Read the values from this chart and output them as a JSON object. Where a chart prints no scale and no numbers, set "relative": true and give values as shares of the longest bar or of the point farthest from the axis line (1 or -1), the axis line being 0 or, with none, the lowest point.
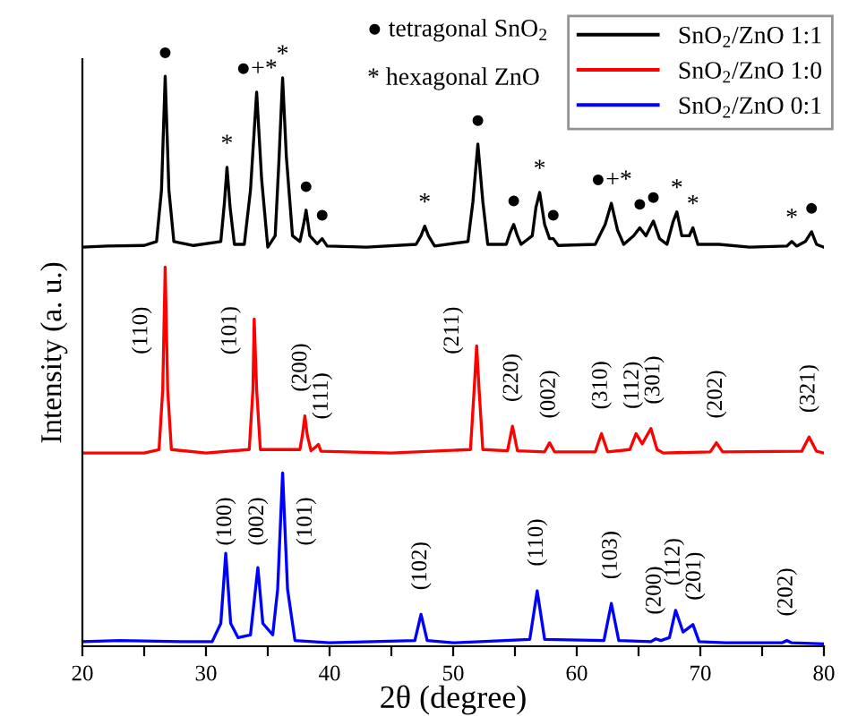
{
  "chart_data": {
    "type": "line",
    "relative": true,
    "xlabel": "2θ (degree)",
    "ylabel": "Intensity (a. u.)",
    "xlim": [
      20,
      80
    ],
    "xticks": [
      20,
      {
        "value": 25,
        "label": null
      },
      30,
      {
        "value": 35,
        "label": null
      },
      40,
      {
        "value": 45,
        "label": null
      },
      50,
      {
        "value": 55,
        "label": null
      },
      60,
      {
        "value": 65,
        "label": null
      },
      70,
      {
        "value": 75,
        "label": null
      },
      80
    ],
    "grid": false,
    "legend": "top right",
    "marker": "none",
    "line_style": "solid",
    "series": [
      {
        "name": "SnO$_{2}$/ZnO 1:1",
        "color": "#000000",
        "x": [
          20,
          22,
          25,
          26.0,
          26.4,
          26.7,
          27.0,
          27.4,
          29,
          31.2,
          31.5,
          31.7,
          31.95,
          32.3,
          33.1,
          33.6,
          34.1,
          34.5,
          35.0,
          35.6,
          35.9,
          36.2,
          36.5,
          37.0,
          37.6,
          37.9,
          38.1,
          38.4,
          39.0,
          39.4,
          39.8,
          43,
          47.0,
          47.4,
          47.7,
          48.0,
          48.5,
          51.2,
          51.6,
          52.0,
          52.4,
          52.8,
          54.3,
          54.6,
          54.9,
          55.2,
          55.5,
          56.4,
          56.7,
          57.0,
          57.4,
          57.8,
          58.1,
          58.5,
          61.5,
          62.3,
          62.8,
          63.3,
          63.8,
          64.6,
          65.1,
          65.6,
          66.2,
          66.7,
          67.3,
          67.8,
          68.1,
          68.5,
          69.1,
          69.4,
          69.8,
          71.5,
          74,
          77.0,
          77.4,
          77.8,
          78.5,
          79.0,
          79.4,
          80
        ],
        "values": [
          0.7,
          0.702,
          0.703,
          0.71,
          0.8,
          1.0,
          0.8,
          0.71,
          0.703,
          0.71,
          0.78,
          0.84,
          0.77,
          0.705,
          0.705,
          0.8,
          0.972,
          0.82,
          0.7,
          0.72,
          0.85,
          0.997,
          0.86,
          0.72,
          0.71,
          0.74,
          0.765,
          0.72,
          0.706,
          0.715,
          0.702,
          0.7,
          0.705,
          0.72,
          0.737,
          0.72,
          0.702,
          0.71,
          0.78,
          0.881,
          0.78,
          0.705,
          0.705,
          0.725,
          0.74,
          0.72,
          0.705,
          0.72,
          0.77,
          0.796,
          0.74,
          0.715,
          0.715,
          0.703,
          0.705,
          0.74,
          0.777,
          0.73,
          0.705,
          0.72,
          0.734,
          0.72,
          0.746,
          0.715,
          0.705,
          0.745,
          0.762,
          0.72,
          0.72,
          0.734,
          0.705,
          0.705,
          0.7,
          0.702,
          0.71,
          0.702,
          0.71,
          0.727,
          0.705,
          0.7
        ]
      },
      {
        "name": "SnO$_{2}$/ZnO 1:0",
        "color": "#ff0000",
        "x": [
          20,
          25,
          26.2,
          26.5,
          26.7,
          26.9,
          27.2,
          30,
          33.5,
          33.8,
          33.9,
          34.1,
          34.4,
          37.6,
          37.8,
          38.0,
          38.2,
          38.5,
          38.9,
          39.1,
          39.3,
          45,
          51.4,
          51.7,
          51.9,
          52.1,
          52.4,
          54.4,
          54.8,
          55.2,
          57.4,
          57.8,
          58.2,
          61.5,
          62.0,
          62.5,
          64.3,
          64.8,
          65.3,
          66.0,
          66.5,
          67,
          70.8,
          71.3,
          71.8,
          78.2,
          78.8,
          79.4,
          80
        ],
        "values": [
          0.339,
          0.339,
          0.345,
          0.45,
          0.665,
          0.45,
          0.345,
          0.339,
          0.345,
          0.45,
          0.574,
          0.45,
          0.345,
          0.345,
          0.37,
          0.404,
          0.37,
          0.343,
          0.35,
          0.354,
          0.342,
          0.339,
          0.345,
          0.45,
          0.527,
          0.45,
          0.345,
          0.343,
          0.386,
          0.343,
          0.341,
          0.357,
          0.341,
          0.341,
          0.373,
          0.341,
          0.345,
          0.373,
          0.355,
          0.382,
          0.345,
          0.339,
          0.341,
          0.357,
          0.341,
          0.342,
          0.367,
          0.342,
          0.339
        ]
      },
      {
        "name": "SnO$_{2}$/ZnO 0:1",
        "color": "#0000ff",
        "x": [
          20,
          23,
          28,
          30.5,
          31.2,
          31.6,
          32.0,
          32.6,
          33.6,
          34.2,
          34.6,
          35.4,
          35.8,
          36.2,
          36.6,
          37.2,
          40,
          46.9,
          47.4,
          47.9,
          50,
          56.2,
          56.8,
          57.4,
          62.2,
          62.8,
          63.4,
          66.0,
          66.4,
          66.8,
          67.5,
          68.0,
          68.6,
          69.4,
          69.9,
          72,
          76.6,
          77.0,
          77.4,
          80
        ],
        "values": [
          0.008,
          0.01,
          0.008,
          0.008,
          0.04,
          0.163,
          0.04,
          0.015,
          0.02,
          0.138,
          0.04,
          0.02,
          0.1,
          0.304,
          0.1,
          0.01,
          0.006,
          0.01,
          0.056,
          0.01,
          0.006,
          0.012,
          0.097,
          0.012,
          0.01,
          0.075,
          0.01,
          0.008,
          0.013,
          0.01,
          0.015,
          0.063,
          0.025,
          0.038,
          0.008,
          0.006,
          0.006,
          0.01,
          0.006,
          0.004
        ]
      }
    ],
    "annotations": [
      "● tetragonal SnO$_{2}$",
      "* hexagonal ZnO",
      {
        "text": "●",
        "x": 26.7,
        "y": 1.0
      },
      {
        "text": "*",
        "x": 31.7,
        "y": 0.84
      },
      {
        "text": "●+*",
        "x": 34.1,
        "y": 0.972
      },
      {
        "text": "*",
        "x": 36.2,
        "y": 0.997
      },
      {
        "text": "●",
        "x": 38.1,
        "y": 0.765
      },
      {
        "text": "●",
        "x": 39.4,
        "y": 0.715
      },
      {
        "text": "*",
        "x": 47.7,
        "y": 0.737
      },
      {
        "text": "●",
        "x": 52.0,
        "y": 0.881
      },
      {
        "text": "●",
        "x": 54.9,
        "y": 0.74
      },
      {
        "text": "*",
        "x": 57.0,
        "y": 0.796
      },
      {
        "text": "●",
        "x": 58.1,
        "y": 0.715
      },
      {
        "text": "●+*",
        "x": 62.8,
        "y": 0.777
      },
      {
        "text": "●",
        "x": 65.1,
        "y": 0.734
      },
      {
        "text": "●",
        "x": 66.2,
        "y": 0.746
      },
      {
        "text": "*",
        "x": 68.1,
        "y": 0.762
      },
      {
        "text": "*",
        "x": 69.4,
        "y": 0.734
      },
      {
        "text": "*",
        "x": 77.4,
        "y": 0.71
      },
      {
        "text": "●",
        "x": 79.0,
        "y": 0.727
      },
      {
        "text": "(110)",
        "x": 26.7,
        "y": 0.665
      },
      {
        "text": "(101)",
        "x": 33.9,
        "y": 0.574
      },
      {
        "text": "(200)",
        "x": 38.0,
        "y": 0.404
      },
      {
        "text": "(111)",
        "x": 39.1,
        "y": 0.354
      },
      {
        "text": "(211)",
        "x": 51.9,
        "y": 0.527
      },
      {
        "text": "(220)",
        "x": 54.8,
        "y": 0.386
      },
      {
        "text": "(002)",
        "x": 57.8,
        "y": 0.357
      },
      {
        "text": "(310)",
        "x": 62.0,
        "y": 0.373
      },
      {
        "text": "(112)",
        "x": 64.8,
        "y": 0.373
      },
      {
        "text": "(301)",
        "x": 66.0,
        "y": 0.382
      },
      {
        "text": "(202)",
        "x": 71.3,
        "y": 0.357
      },
      {
        "text": "(321)",
        "x": 78.8,
        "y": 0.367
      },
      {
        "text": "(100)",
        "x": 31.6,
        "y": 0.163
      },
      {
        "text": "(002)",
        "x": 34.2,
        "y": 0.138
      },
      {
        "text": "(101)",
        "x": 36.2,
        "y": 0.304
      },
      {
        "text": "(102)",
        "x": 47.4,
        "y": 0.056
      },
      {
        "text": "(110)",
        "x": 56.8,
        "y": 0.097
      },
      {
        "text": "(103)",
        "x": 62.8,
        "y": 0.075
      },
      {
        "text": "(200)",
        "x": 66.4,
        "y": 0.013
      },
      {
        "text": "(112)",
        "x": 68.0,
        "y": 0.063
      },
      {
        "text": "(201)",
        "x": 69.4,
        "y": 0.038
      },
      {
        "text": "(202)",
        "x": 77.0,
        "y": 0.01
      }
    ]
  }
}
